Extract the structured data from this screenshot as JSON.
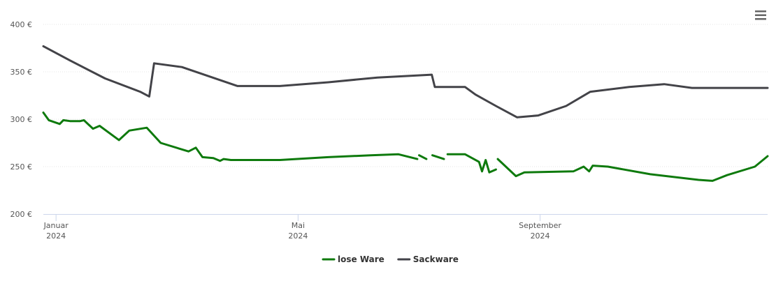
{
  "chart_data": {
    "type": "line",
    "xlim": [
      -0.21,
      11.76
    ],
    "xticks": [
      {
        "value": 0,
        "label": "Januar 2024"
      },
      {
        "value": 4,
        "label": "Mai 2024"
      },
      {
        "value": 8,
        "label": "September 2024"
      }
    ],
    "ylim": [
      200,
      400
    ],
    "yticks": [
      {
        "value": 200,
        "label": "200 €"
      },
      {
        "value": 250,
        "label": "250 €"
      },
      {
        "value": 300,
        "label": "300 €"
      },
      {
        "value": 350,
        "label": "350 €"
      },
      {
        "value": 400,
        "label": "400 €"
      }
    ],
    "grid": true,
    "series": [
      {
        "name": "lose Ware",
        "color": "#0e7a0d",
        "x": [
          -0.21,
          -0.12,
          0.06,
          0.12,
          0.23,
          0.4,
          0.46,
          0.61,
          0.72,
          1.04,
          1.21,
          1.5,
          1.73,
          2.19,
          2.31,
          2.42,
          2.6,
          2.71,
          2.77,
          2.89,
          3.7,
          4.5,
          5.2,
          5.66,
          5.97,
          5.98,
          6.0,
          6.12,
          6.17,
          6.22,
          6.41,
          6.44,
          6.47,
          6.76,
          6.99,
          7.04,
          7.1,
          7.16,
          7.27,
          7.28,
          7.3,
          7.45,
          7.6,
          7.74,
          8.55,
          8.72,
          8.81,
          8.87,
          9.12,
          9.82,
          10.62,
          10.85,
          11.09,
          11.55,
          11.76
        ],
        "values": [
          307,
          299,
          295,
          299,
          298,
          298,
          299,
          290,
          293,
          278,
          288,
          291,
          275,
          266,
          270,
          260,
          259,
          256,
          258,
          257,
          257,
          260,
          262,
          263,
          258,
          null,
          262,
          258,
          null,
          262,
          258,
          null,
          263,
          263,
          255,
          245,
          257,
          244,
          247,
          null,
          258,
          249,
          240,
          244,
          245,
          250,
          245,
          251,
          250,
          242,
          236,
          235,
          241,
          250,
          261
        ]
      },
      {
        "name": "Sackware",
        "color": "#434348",
        "x": [
          -0.21,
          0.23,
          0.81,
          1.39,
          1.54,
          1.62,
          2.08,
          2.54,
          3.0,
          3.7,
          4.5,
          5.31,
          6.21,
          6.26,
          6.76,
          6.93,
          7.27,
          7.62,
          7.97,
          8.43,
          8.83,
          9.47,
          10.05,
          10.51,
          11.76
        ],
        "values": [
          377,
          362,
          343,
          329,
          324,
          359,
          355,
          345,
          335,
          335,
          339,
          344,
          347,
          334,
          334,
          326,
          314,
          302,
          304,
          314,
          329,
          334,
          337,
          333,
          333
        ]
      }
    ]
  }
}
